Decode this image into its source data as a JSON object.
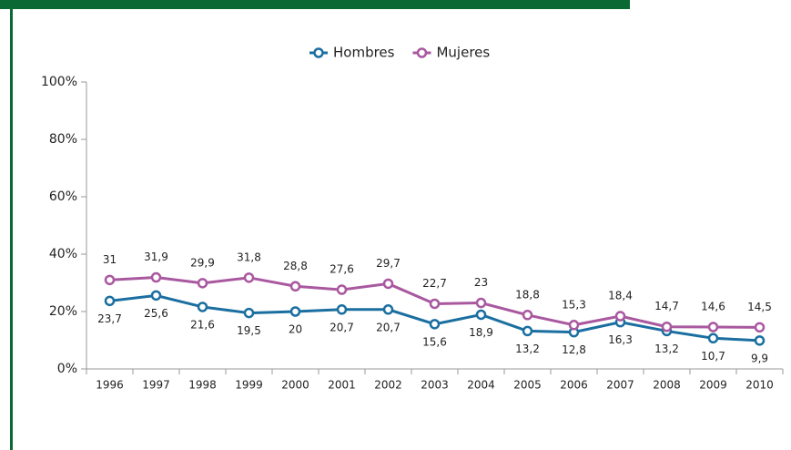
{
  "chart_data": {
    "type": "line",
    "categories": [
      "1996",
      "1997",
      "1998",
      "1999",
      "2000",
      "2001",
      "2002",
      "2003",
      "2004",
      "2005",
      "2006",
      "2007",
      "2008",
      "2009",
      "2010"
    ],
    "series": [
      {
        "name": "Hombres",
        "color": "#1a6fa0",
        "values": [
          23.7,
          25.6,
          21.6,
          19.5,
          20,
          20.7,
          20.7,
          15.6,
          18.9,
          13.2,
          12.8,
          16.3,
          13.2,
          10.7,
          9.9
        ],
        "value_labels": [
          "23,7",
          "25,6",
          "21,6",
          "19,5",
          "20",
          "20,7",
          "20,7",
          "15,6",
          "18,9",
          "13,2",
          "12,8",
          "16,3",
          "13,2",
          "10,7",
          "9,9"
        ]
      },
      {
        "name": "Mujeres",
        "color": "#a9589f",
        "values": [
          31,
          31.9,
          29.9,
          31.8,
          28.8,
          27.6,
          29.7,
          22.7,
          23,
          18.8,
          15.3,
          18.4,
          14.7,
          14.6,
          14.5
        ],
        "value_labels": [
          "31",
          "31,9",
          "29,9",
          "31,8",
          "28,8",
          "27,6",
          "29,7",
          "22,7",
          "23",
          "18,8",
          "15,3",
          "18,4",
          "14,7",
          "14,6",
          "14,5"
        ]
      }
    ],
    "ylim": [
      0,
      100
    ],
    "yticks": [
      {
        "value": 0,
        "label": "0%"
      },
      {
        "value": 20,
        "label": "20%"
      },
      {
        "value": 40,
        "label": "40%"
      },
      {
        "value": 60,
        "label": "60%"
      },
      {
        "value": 80,
        "label": "80%"
      },
      {
        "value": 100,
        "label": "100%"
      }
    ],
    "legend": "top"
  }
}
